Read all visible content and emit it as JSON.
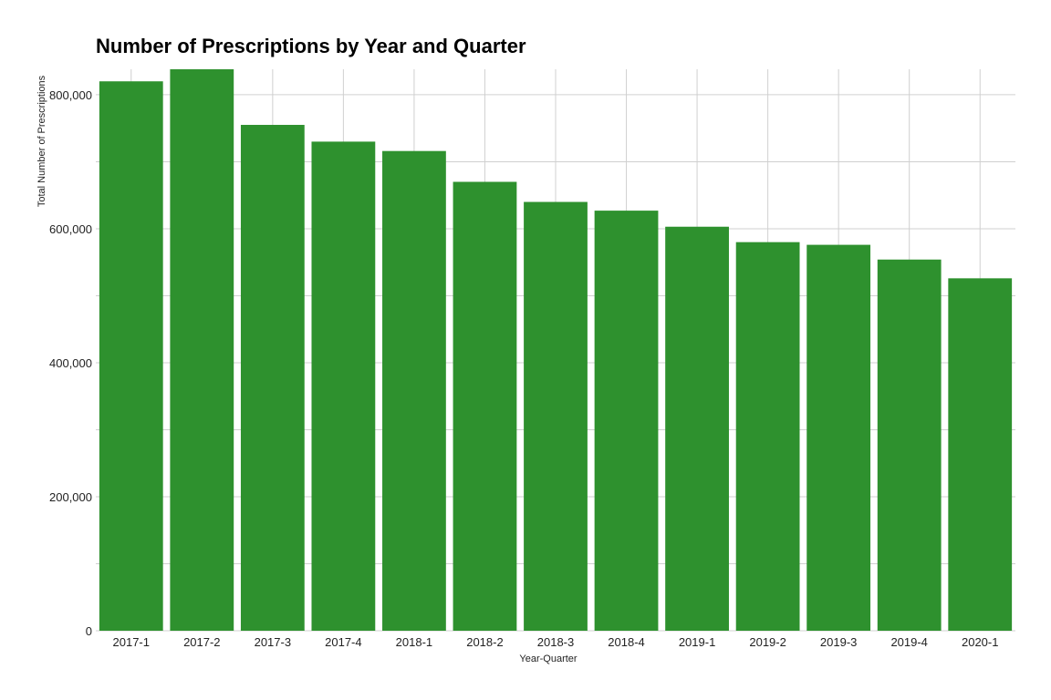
{
  "chart_data": {
    "type": "bar",
    "title": "Number of Prescriptions by Year and Quarter",
    "xlabel": "Year-Quarter",
    "ylabel": "Total Number of Prescriptions",
    "categories": [
      "2017-1",
      "2017-2",
      "2017-3",
      "2017-4",
      "2018-1",
      "2018-2",
      "2018-3",
      "2018-4",
      "2019-1",
      "2019-2",
      "2019-3",
      "2019-4",
      "2020-1"
    ],
    "values": [
      820000,
      838000,
      755000,
      730000,
      716000,
      670000,
      640000,
      627000,
      603000,
      580000,
      576000,
      554000,
      526000
    ],
    "ylim": [
      0,
      838000
    ],
    "yticks": [
      0,
      200000,
      400000,
      600000,
      800000
    ],
    "ytick_labels": [
      "0",
      "200,000",
      "400,000",
      "600,000",
      "800,000"
    ],
    "grid": true,
    "bar_color": "#2e912e",
    "grid_color": "#d0d0d0"
  }
}
